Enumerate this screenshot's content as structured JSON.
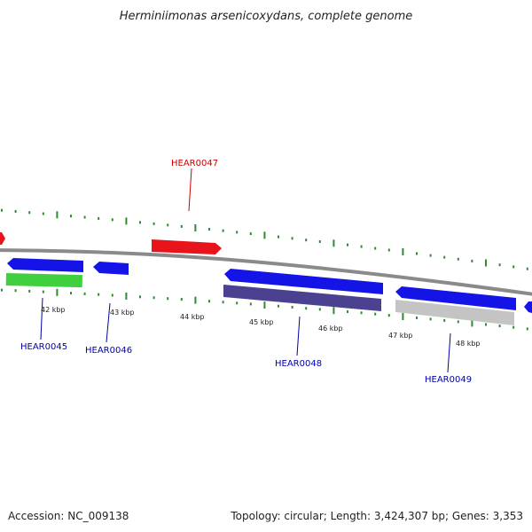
{
  "title": "Herminiimonas arsenicoxydans, complete genome",
  "footer": {
    "accession": "Accession: NC_009138",
    "summary": "Topology: circular; Length: 3,424,307 bp; Genes: 3,353"
  },
  "colors": {
    "backbone": "#8a8a8a",
    "ticks": "#2e8b2e",
    "forward_gene": "#e8141c",
    "reverse_gene": "#1414e6",
    "green_feature": "#3fcf3f",
    "purple_feature": "#4a4290",
    "grey_feature": "#c4c4c4",
    "label_red": "#cc0000",
    "label_blue": "#0000aa"
  },
  "tick_labels": [
    "42 kbp",
    "43 kbp",
    "44 kbp",
    "45 kbp",
    "46 kbp",
    "47 kbp",
    "48 kbp"
  ],
  "gene_labels": {
    "hear0045": "HEAR0045",
    "hear0046": "HEAR0046",
    "hear0047": "HEAR0047",
    "hear0048": "HEAR0048",
    "hear0049": "HEAR0049"
  }
}
